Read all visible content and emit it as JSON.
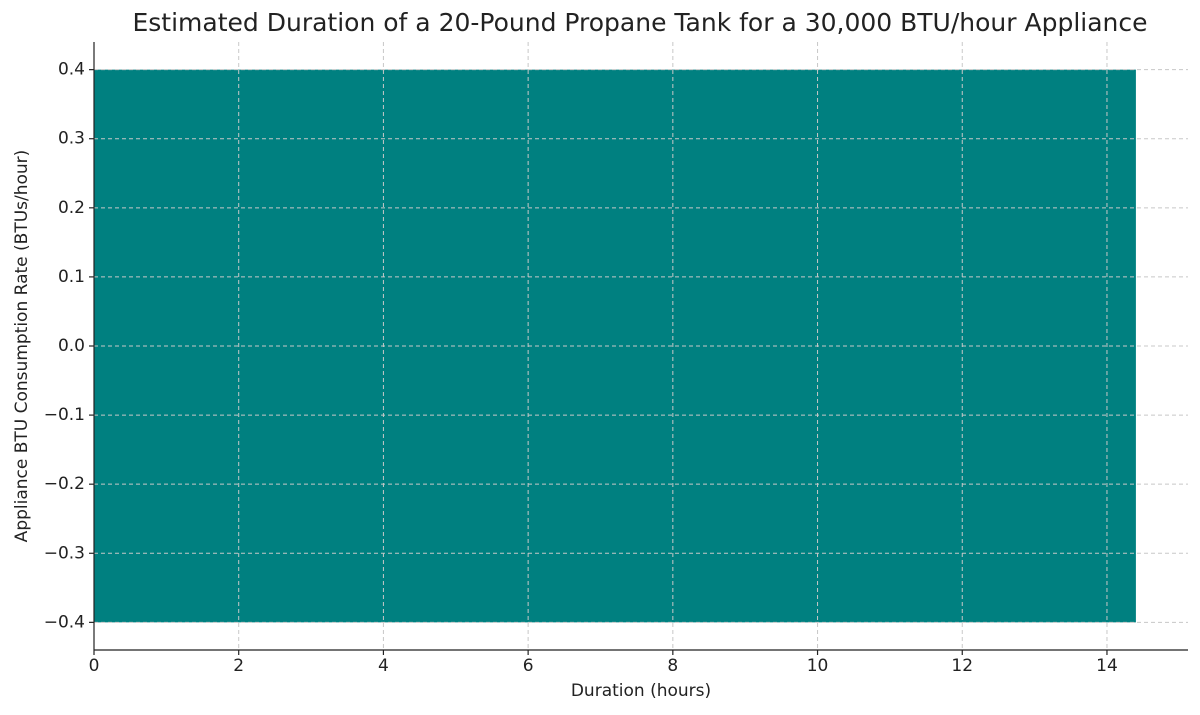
{
  "chart_data": {
    "type": "bar",
    "orientation": "horizontal",
    "title": "Estimated Duration of a 20-Pound Propane Tank for a 30,000 BTU/hour Appliance",
    "x_label": "Duration (hours)",
    "y_label": "Appliance BTU Consumption Rate (BTUs/hour)",
    "categories": [
      null
    ],
    "values": [
      14.4
    ],
    "color": "#008080",
    "xlim": [
      0,
      15.12
    ],
    "xticks": [
      0,
      2,
      4,
      6,
      8,
      10,
      12,
      14
    ],
    "ylim": [
      -0.44,
      0.44
    ],
    "yticks": [
      {
        "value": -0.4,
        "label": "−0.4"
      },
      {
        "value": -0.3,
        "label": "−0.3"
      },
      {
        "value": -0.2,
        "label": "−0.2"
      },
      {
        "value": -0.1,
        "label": "−0.1"
      },
      {
        "value": 0,
        "label": "0.0"
      },
      0.1,
      0.2,
      0.3,
      0.4
    ],
    "grid": true
  }
}
